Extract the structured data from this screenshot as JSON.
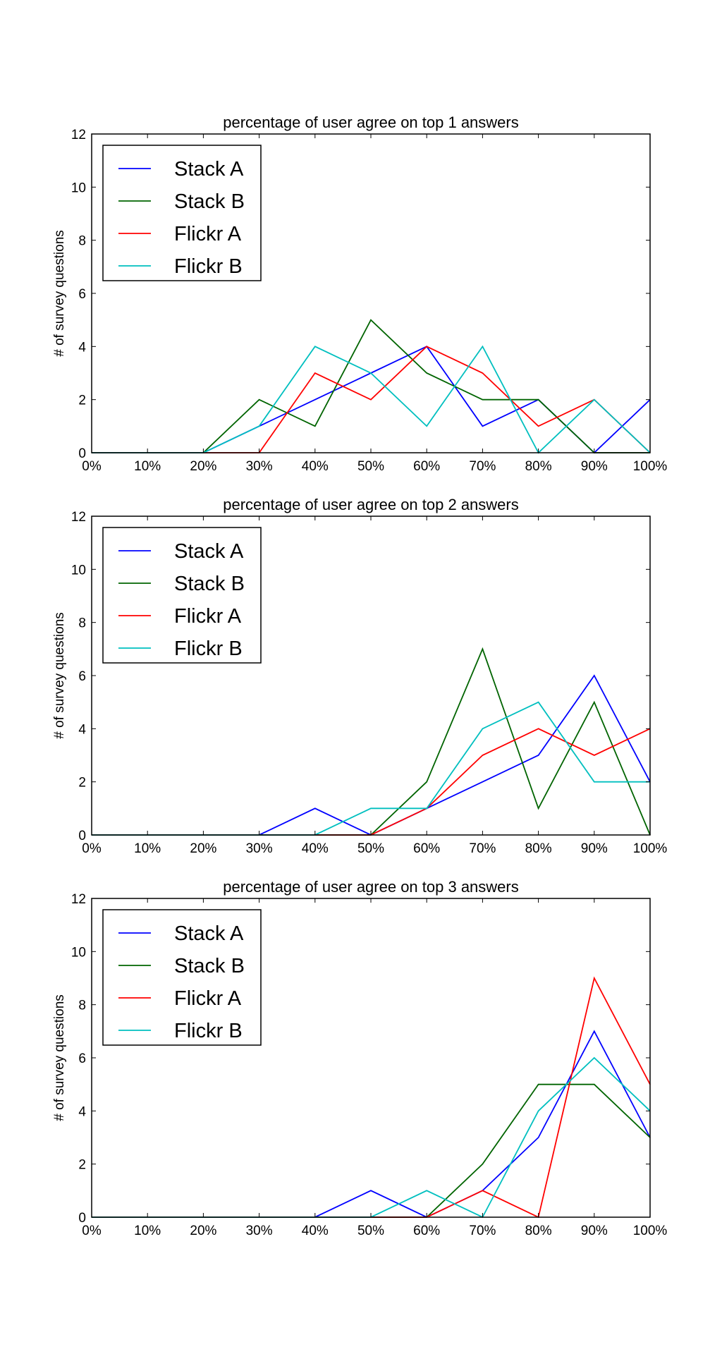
{
  "chart_data": [
    {
      "type": "line",
      "title": "percentage of user agree on top 1 answers",
      "xlabel": "",
      "ylabel": "# of survey questions",
      "x": [
        "0%",
        "10%",
        "20%",
        "30%",
        "40%",
        "50%",
        "60%",
        "70%",
        "80%",
        "90%",
        "100%"
      ],
      "ylim": [
        0,
        12
      ],
      "yticks": [
        "0",
        "2",
        "4",
        "6",
        "8",
        "10",
        "12"
      ],
      "grid": false,
      "legend_position": "top-left",
      "series": [
        {
          "name": "Stack A",
          "color": "#0000ff",
          "values": [
            0,
            0,
            0,
            1,
            2,
            3,
            4,
            1,
            2,
            0,
            2
          ]
        },
        {
          "name": "Stack B",
          "color": "#006400",
          "values": [
            0,
            0,
            0,
            2,
            1,
            5,
            3,
            2,
            2,
            0,
            0
          ]
        },
        {
          "name": "Flickr A",
          "color": "#ff0000",
          "values": [
            0,
            0,
            0,
            0,
            3,
            2,
            4,
            3,
            1,
            2,
            0
          ]
        },
        {
          "name": "Flickr B",
          "color": "#00bfbf",
          "values": [
            0,
            0,
            0,
            1,
            4,
            3,
            1,
            4,
            0,
            2,
            0
          ]
        }
      ]
    },
    {
      "type": "line",
      "title": "percentage of user agree on top 2 answers",
      "xlabel": "",
      "ylabel": "# of survey questions",
      "x": [
        "0%",
        "10%",
        "20%",
        "30%",
        "40%",
        "50%",
        "60%",
        "70%",
        "80%",
        "90%",
        "100%"
      ],
      "ylim": [
        0,
        12
      ],
      "yticks": [
        "0",
        "2",
        "4",
        "6",
        "8",
        "10",
        "12"
      ],
      "grid": false,
      "legend_position": "top-left",
      "series": [
        {
          "name": "Stack A",
          "color": "#0000ff",
          "values": [
            0,
            0,
            0,
            0,
            1,
            0,
            1,
            2,
            3,
            6,
            2
          ]
        },
        {
          "name": "Stack B",
          "color": "#006400",
          "values": [
            0,
            0,
            0,
            0,
            0,
            0,
            2,
            7,
            1,
            5,
            0
          ]
        },
        {
          "name": "Flickr A",
          "color": "#ff0000",
          "values": [
            0,
            0,
            0,
            0,
            0,
            0,
            1,
            3,
            4,
            3,
            4
          ]
        },
        {
          "name": "Flickr B",
          "color": "#00bfbf",
          "values": [
            0,
            0,
            0,
            0,
            0,
            1,
            1,
            4,
            5,
            2,
            2
          ]
        }
      ]
    },
    {
      "type": "line",
      "title": "percentage of user agree on top 3 answers",
      "xlabel": "",
      "ylabel": "# of survey questions",
      "x": [
        "0%",
        "10%",
        "20%",
        "30%",
        "40%",
        "50%",
        "60%",
        "70%",
        "80%",
        "90%",
        "100%"
      ],
      "ylim": [
        0,
        12
      ],
      "yticks": [
        "0",
        "2",
        "4",
        "6",
        "8",
        "10",
        "12"
      ],
      "grid": false,
      "legend_position": "top-left",
      "series": [
        {
          "name": "Stack A",
          "color": "#0000ff",
          "values": [
            0,
            0,
            0,
            0,
            0,
            1,
            0,
            1,
            3,
            7,
            3
          ]
        },
        {
          "name": "Stack B",
          "color": "#006400",
          "values": [
            0,
            0,
            0,
            0,
            0,
            0,
            0,
            2,
            5,
            5,
            3
          ]
        },
        {
          "name": "Flickr A",
          "color": "#ff0000",
          "values": [
            0,
            0,
            0,
            0,
            0,
            0,
            0,
            1,
            0,
            9,
            5
          ]
        },
        {
          "name": "Flickr B",
          "color": "#00bfbf",
          "values": [
            0,
            0,
            0,
            0,
            0,
            0,
            1,
            0,
            4,
            6,
            4
          ]
        }
      ]
    }
  ]
}
